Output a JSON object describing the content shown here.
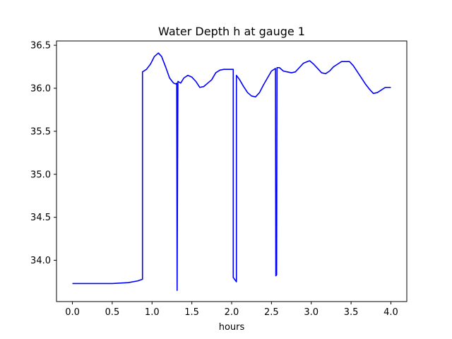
{
  "chart_data": {
    "type": "line",
    "title": "Water Depth h at gauge 1",
    "xlabel": "hours",
    "ylabel": "",
    "xlim": [
      -0.2,
      4.2
    ],
    "ylim": [
      33.52,
      36.55
    ],
    "xticks": [
      0.0,
      0.5,
      1.0,
      1.5,
      2.0,
      2.5,
      3.0,
      3.5,
      4.0
    ],
    "xtick_labels": [
      "0.0",
      "0.5",
      "1.0",
      "1.5",
      "2.0",
      "2.5",
      "3.0",
      "3.5",
      "4.0"
    ],
    "yticks": [
      34.0,
      34.5,
      35.0,
      35.5,
      36.0,
      36.5
    ],
    "ytick_labels": [
      "34.0",
      "34.5",
      "35.0",
      "35.5",
      "36.0",
      "36.5"
    ],
    "grid": false,
    "legend": "none",
    "series": [
      {
        "color": "#0000ff",
        "points": [
          [
            0.0,
            33.73
          ],
          [
            0.5,
            33.73
          ],
          [
            0.7,
            33.74
          ],
          [
            0.82,
            33.76
          ],
          [
            0.88,
            33.78
          ],
          [
            0.88,
            36.19
          ],
          [
            0.93,
            36.22
          ],
          [
            0.98,
            36.28
          ],
          [
            1.03,
            36.37
          ],
          [
            1.08,
            36.41
          ],
          [
            1.12,
            36.37
          ],
          [
            1.17,
            36.25
          ],
          [
            1.22,
            36.12
          ],
          [
            1.27,
            36.06
          ],
          [
            1.3,
            36.05
          ],
          [
            1.31,
            36.06
          ],
          [
            1.315,
            33.65
          ],
          [
            1.325,
            36.08
          ],
          [
            1.36,
            36.06
          ],
          [
            1.4,
            36.12
          ],
          [
            1.45,
            36.15
          ],
          [
            1.5,
            36.13
          ],
          [
            1.55,
            36.08
          ],
          [
            1.6,
            36.01
          ],
          [
            1.65,
            36.02
          ],
          [
            1.7,
            36.06
          ],
          [
            1.75,
            36.1
          ],
          [
            1.8,
            36.18
          ],
          [
            1.85,
            36.21
          ],
          [
            1.9,
            36.22
          ],
          [
            1.95,
            36.22
          ],
          [
            2.02,
            36.22
          ],
          [
            2.02,
            33.8
          ],
          [
            2.06,
            33.75
          ],
          [
            2.06,
            36.15
          ],
          [
            2.1,
            36.1
          ],
          [
            2.15,
            36.02
          ],
          [
            2.2,
            35.95
          ],
          [
            2.25,
            35.91
          ],
          [
            2.3,
            35.9
          ],
          [
            2.35,
            35.95
          ],
          [
            2.4,
            36.04
          ],
          [
            2.45,
            36.12
          ],
          [
            2.5,
            36.2
          ],
          [
            2.55,
            36.23
          ],
          [
            2.555,
            33.82
          ],
          [
            2.565,
            33.83
          ],
          [
            2.57,
            36.24
          ],
          [
            2.6,
            36.24
          ],
          [
            2.65,
            36.2
          ],
          [
            2.7,
            36.19
          ],
          [
            2.75,
            36.18
          ],
          [
            2.8,
            36.19
          ],
          [
            2.85,
            36.24
          ],
          [
            2.9,
            36.29
          ],
          [
            2.95,
            36.31
          ],
          [
            2.98,
            36.32
          ],
          [
            3.03,
            36.28
          ],
          [
            3.08,
            36.23
          ],
          [
            3.13,
            36.18
          ],
          [
            3.18,
            36.17
          ],
          [
            3.23,
            36.2
          ],
          [
            3.28,
            36.25
          ],
          [
            3.33,
            36.28
          ],
          [
            3.38,
            36.31
          ],
          [
            3.43,
            36.31
          ],
          [
            3.48,
            36.31
          ],
          [
            3.53,
            36.26
          ],
          [
            3.58,
            36.19
          ],
          [
            3.63,
            36.12
          ],
          [
            3.68,
            36.05
          ],
          [
            3.73,
            35.99
          ],
          [
            3.78,
            35.94
          ],
          [
            3.83,
            35.95
          ],
          [
            3.88,
            35.98
          ],
          [
            3.93,
            36.01
          ],
          [
            3.98,
            36.01
          ],
          [
            4.0,
            36.01
          ]
        ]
      }
    ]
  }
}
